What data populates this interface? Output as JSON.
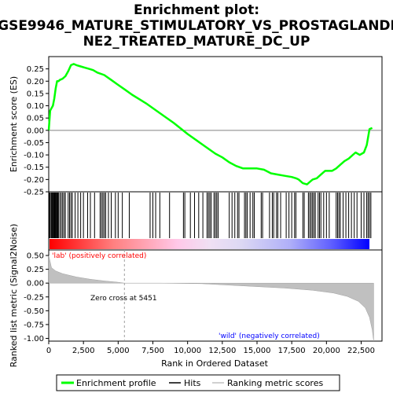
{
  "chart_data": {
    "type": "line",
    "title_lines": [
      "Enrichment plot:",
      "GSE9946_MATURE_STIMULATORY_VS_PROSTAGLANDI",
      "NE2_TREATED_MATURE_DC_UP"
    ],
    "xlabel": "Rank in Ordered Dataset",
    "ylabel_top": "Enrichment score (ES)",
    "ylabel_bottom": "Ranked list metric (Signal2Noise)",
    "xlim": [
      0,
      24000
    ],
    "x_ticks": [
      0,
      2500,
      5000,
      7500,
      10000,
      12500,
      15000,
      17500,
      20000,
      22500
    ],
    "x_tick_labels": [
      "0",
      "2,500",
      "5,000",
      "7,500",
      "10,000",
      "12,500",
      "15,000",
      "17,500",
      "20,000",
      "22,500"
    ],
    "es_ylim": [
      -0.25,
      0.3
    ],
    "es_ticks": [
      -0.25,
      -0.2,
      -0.15,
      -0.1,
      -0.05,
      0.0,
      0.05,
      0.1,
      0.15,
      0.2,
      0.25
    ],
    "es_tick_labels": [
      "-0.25",
      "-0.20",
      "-0.15",
      "-0.10",
      "-0.05",
      "0.00",
      "0.05",
      "0.10",
      "0.15",
      "0.20",
      "0.25"
    ],
    "metric_ylim": [
      -1.05,
      0.6
    ],
    "metric_ticks": [
      0.5,
      0.25,
      0.0,
      -0.25,
      -0.5,
      -0.75,
      -1.0
    ],
    "metric_tick_labels": [
      "0.50",
      "0.25",
      "0.00",
      "-0.25",
      "-0.50",
      "-0.75",
      "-1.00"
    ],
    "series": [
      {
        "name": "Enrichment profile",
        "color": "#00ff00",
        "x": [
          0,
          100,
          200,
          300,
          400,
          500,
          600,
          700,
          800,
          1000,
          1200,
          1400,
          1600,
          1800,
          2000,
          2300,
          2600,
          2900,
          3200,
          3500,
          4000,
          4500,
          5000,
          5500,
          6000,
          7000,
          8000,
          9000,
          10000,
          11000,
          12000,
          12500,
          13000,
          13500,
          14000,
          14500,
          15000,
          15500,
          16000,
          16500,
          17000,
          17500,
          17800,
          18000,
          18300,
          18600,
          18800,
          19000,
          19300,
          19600,
          19900,
          20100,
          20400,
          20700,
          21000,
          21300,
          21600,
          21900,
          22100,
          22400,
          22700,
          22900,
          23100,
          23300
        ],
        "y": [
          0.0,
          0.08,
          0.09,
          0.1,
          0.13,
          0.17,
          0.2,
          0.2,
          0.205,
          0.21,
          0.22,
          0.24,
          0.265,
          0.27,
          0.265,
          0.26,
          0.255,
          0.25,
          0.245,
          0.235,
          0.225,
          0.205,
          0.185,
          0.165,
          0.145,
          0.11,
          0.07,
          0.03,
          -0.015,
          -0.055,
          -0.095,
          -0.11,
          -0.13,
          -0.145,
          -0.155,
          -0.155,
          -0.155,
          -0.16,
          -0.175,
          -0.18,
          -0.185,
          -0.19,
          -0.195,
          -0.2,
          -0.215,
          -0.22,
          -0.21,
          -0.2,
          -0.195,
          -0.18,
          -0.165,
          -0.165,
          -0.165,
          -0.155,
          -0.14,
          -0.125,
          -0.115,
          -0.1,
          -0.09,
          -0.1,
          -0.09,
          -0.06,
          0.005,
          0.01
        ]
      },
      {
        "name": "Ranking metric scores",
        "color": "#c0c0c0",
        "x": [
          0,
          200,
          500,
          1000,
          2000,
          3000,
          4000,
          5000,
          5451,
          8000,
          11000,
          14000,
          17000,
          19000,
          20500,
          21500,
          22300,
          22800,
          23100,
          23300,
          23400
        ],
        "y": [
          0.5,
          0.28,
          0.22,
          0.17,
          0.11,
          0.07,
          0.04,
          0.015,
          0.0,
          0.0,
          -0.01,
          -0.05,
          -0.09,
          -0.13,
          -0.18,
          -0.24,
          -0.33,
          -0.45,
          -0.62,
          -0.85,
          -1.05
        ]
      }
    ],
    "hits_legend": "Hits",
    "hit_positions": [
      20,
      60,
      120,
      200,
      250,
      300,
      350,
      400,
      450,
      500,
      550,
      600,
      650,
      700,
      800,
      900,
      1000,
      1100,
      1200,
      1400,
      1500,
      1600,
      1700,
      1900,
      2100,
      2300,
      2500,
      2800,
      3000,
      3300,
      3700,
      3800,
      3900,
      4000,
      4100,
      4300,
      4500,
      4800,
      5000,
      5300,
      5800,
      7300,
      7500,
      7700,
      8000,
      8700,
      9700,
      9800,
      10200,
      10500,
      10800,
      11100,
      11400,
      11500,
      11600,
      11700,
      11900,
      12000,
      12100,
      12200,
      13000,
      13200,
      13400,
      13600,
      13700,
      14100,
      14200,
      14300,
      14500,
      14700,
      14800,
      15300,
      15400,
      15900,
      16100,
      16200,
      16400,
      16500,
      16700,
      17100,
      17300,
      17500,
      17700,
      17800,
      18300,
      18400,
      18700,
      18800,
      18900,
      19000,
      19100,
      19200,
      19400,
      19500,
      19600,
      19800,
      20000,
      20200,
      20700,
      20800,
      20900,
      21000,
      21200,
      21400,
      21600,
      21800,
      22000,
      22200,
      22500,
      22700,
      22900,
      23000,
      23100,
      23200
    ],
    "annotations": {
      "pos_label": "'lab' (positively correlated)",
      "neg_label": "'wild' (negatively correlated)",
      "zero_cross": "Zero cross at 5451",
      "zero_cross_x": 5451
    },
    "legend_entries": [
      "Enrichment profile",
      "Hits",
      "Ranking metric scores"
    ],
    "colors": {
      "es_line": "#00ff00",
      "hit": "#000000",
      "metric_fill": "#c0c0c0",
      "pos_label": "#ff0000",
      "neg_label": "#0000ff",
      "gradient_red": "#ff0000",
      "gradient_blue": "#0000ff"
    }
  }
}
